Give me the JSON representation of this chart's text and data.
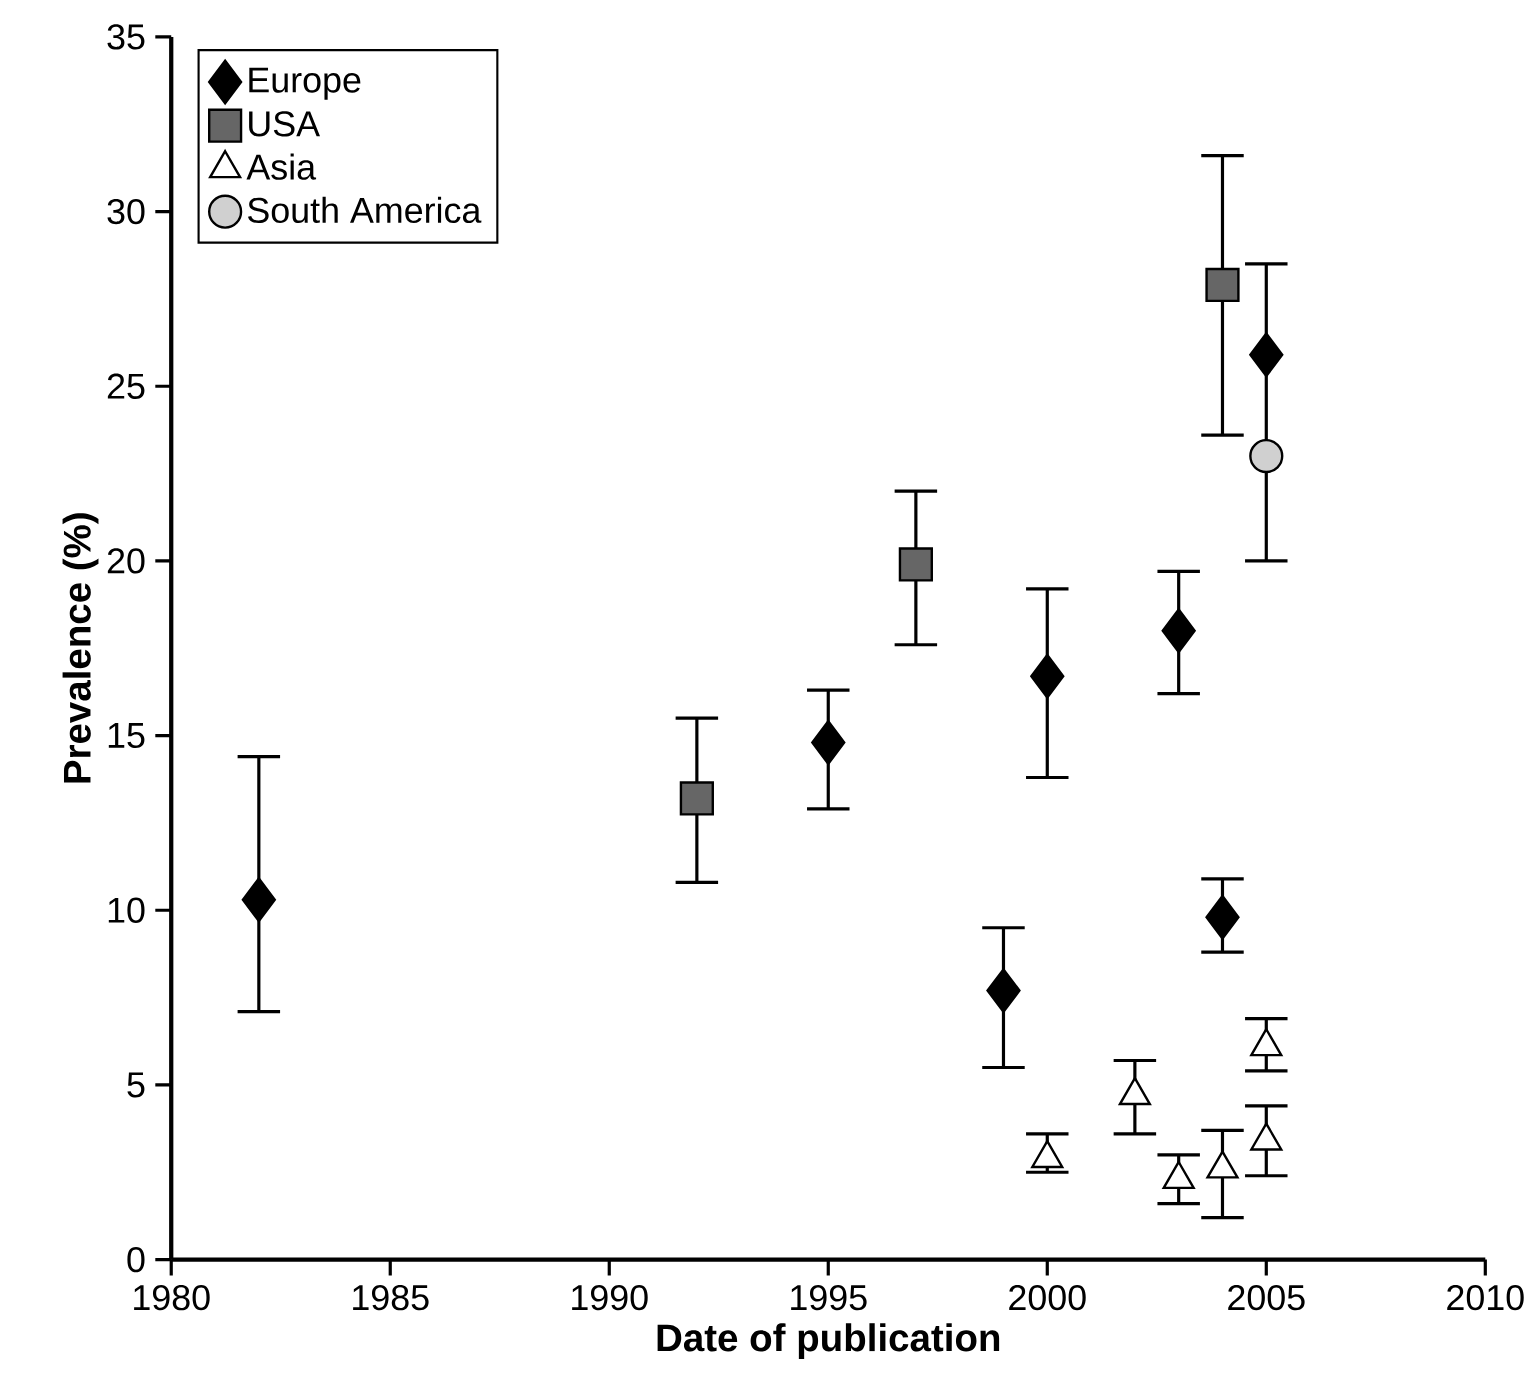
{
  "chart_data": {
    "type": "scatter",
    "xlabel": "Date of publication",
    "ylabel": "Prevalence (%)",
    "xlim": [
      1980,
      2010
    ],
    "xticks": [
      1980,
      1985,
      1990,
      1995,
      2000,
      2005,
      2010
    ],
    "ylim": [
      0,
      35
    ],
    "yticks": [
      0,
      5,
      10,
      15,
      20,
      25,
      30,
      35
    ],
    "legend": "top left",
    "grid": false,
    "series": [
      {
        "name": "Europe",
        "color": "#000000",
        "marker": "diamond",
        "x": [
          1982,
          1995,
          1999,
          2000,
          2003,
          2004,
          2005
        ],
        "values": [
          10.3,
          14.8,
          7.7,
          16.7,
          18.0,
          9.8,
          25.9
        ],
        "errors": [
          [
            7.1,
            14.4
          ],
          [
            12.9,
            16.3
          ],
          [
            5.5,
            9.5
          ],
          [
            13.8,
            19.2
          ],
          [
            16.2,
            19.7
          ],
          [
            8.8,
            10.9
          ],
          [
            20.0,
            28.5
          ]
        ]
      },
      {
        "name": "USA",
        "color": "#666666",
        "marker": "square",
        "x": [
          1992,
          1997,
          2004
        ],
        "values": [
          13.2,
          19.9,
          27.9
        ],
        "errors": [
          [
            10.8,
            15.5
          ],
          [
            17.6,
            22.0
          ],
          [
            23.6,
            31.6
          ]
        ]
      },
      {
        "name": "Asia",
        "color": "#ffffff",
        "marker": "triangle",
        "x": [
          2000,
          2002,
          2003,
          2004,
          2005,
          2005
        ],
        "values": [
          2.9,
          4.7,
          2.3,
          2.6,
          6.1,
          3.4
        ],
        "errors": [
          [
            2.5,
            3.6
          ],
          [
            3.6,
            5.7
          ],
          [
            1.6,
            3.0
          ],
          [
            1.2,
            3.7
          ],
          [
            5.4,
            6.9
          ],
          [
            2.4,
            4.4
          ]
        ]
      },
      {
        "name": "South America",
        "color": "#d0d0d0",
        "marker": "circle",
        "x": [
          2005
        ],
        "values": [
          23.0
        ]
      }
    ]
  }
}
